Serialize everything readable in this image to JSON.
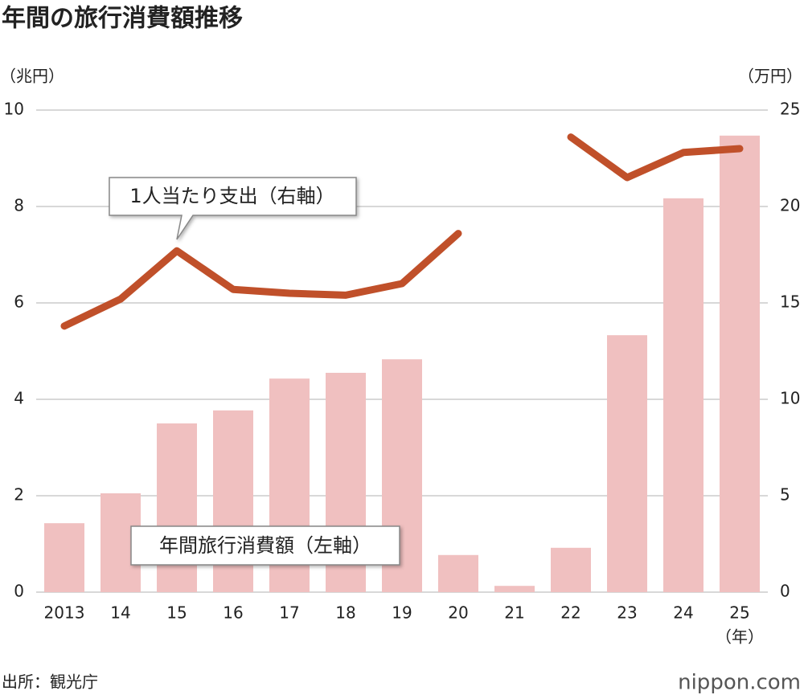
{
  "chart_data": {
    "type": "bar-line",
    "title": "年間の旅行消費額推移",
    "y_label": "（兆円）",
    "y2_label": "（万円）",
    "x_unit": "（年）",
    "source": "出所：観光庁",
    "logo": "nippon.com",
    "categories": [
      "2013",
      "14",
      "15",
      "16",
      "17",
      "18",
      "19",
      "20",
      "21",
      "22",
      "23",
      "24",
      "25"
    ],
    "series": [
      {
        "name": "年間旅行消費額（左軸）",
        "type": "bar",
        "color": "#f0c0c0",
        "axis": "y",
        "values": [
          1.43,
          2.05,
          3.5,
          3.77,
          4.43,
          4.55,
          4.83,
          0.77,
          0.13,
          0.92,
          5.33,
          8.17,
          9.47
        ]
      },
      {
        "name": "1人当たり支出（右軸）",
        "type": "line",
        "color": "#c0502a",
        "axis": "y2",
        "values": [
          13.8,
          15.2,
          17.7,
          15.7,
          15.5,
          15.4,
          16.0,
          18.6,
          null,
          23.6,
          21.5,
          22.8,
          23.0
        ]
      }
    ],
    "ylim": [
      0,
      10
    ],
    "yticks": [
      0,
      2,
      4,
      6,
      8,
      10
    ],
    "y2lim": [
      0,
      25
    ],
    "y2ticks": [
      0,
      5,
      10,
      15,
      20,
      25
    ],
    "grid": true
  }
}
